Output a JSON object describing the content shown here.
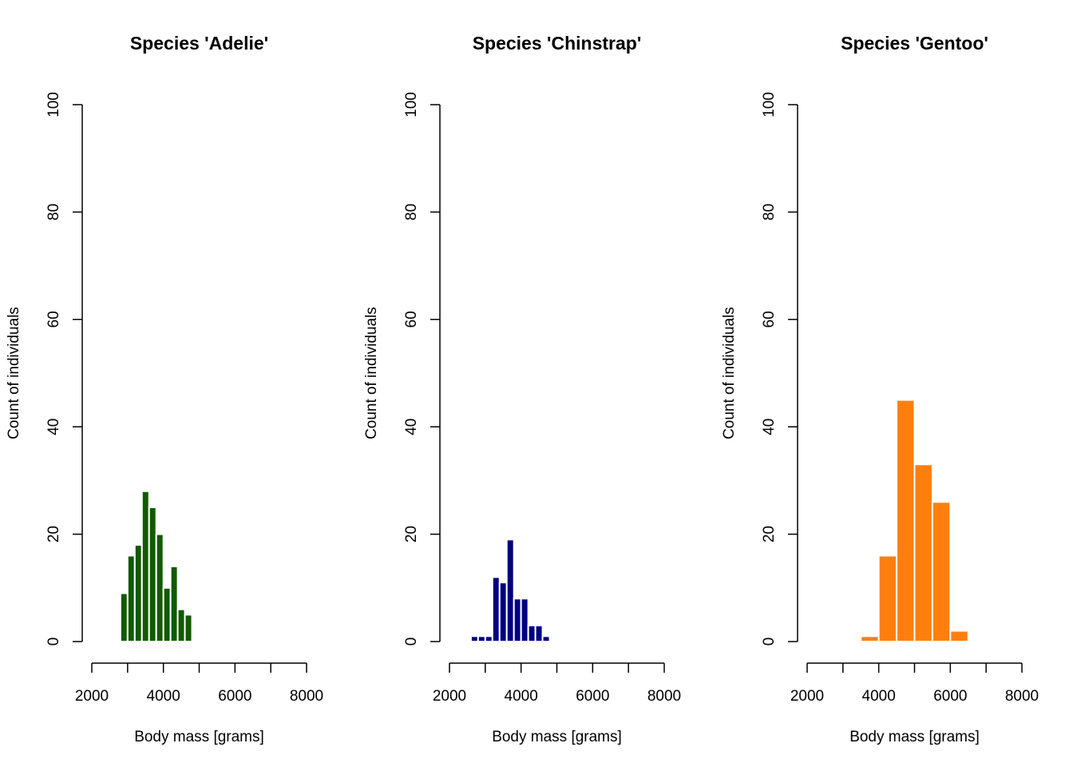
{
  "chart_data": [
    {
      "type": "histogram",
      "title": "Species 'Adelie'",
      "xlabel": "Body mass [grams]",
      "ylabel": "Count of individuals",
      "bins": [
        2800,
        3000,
        3200,
        3400,
        3600,
        3800,
        4000,
        4200,
        4400,
        4600,
        4800
      ],
      "values": [
        9,
        16,
        18,
        28,
        25,
        20,
        10,
        14,
        6,
        5
      ],
      "color": "#115a00",
      "xlim": [
        2000,
        8000
      ],
      "xticks": [
        2000,
        4000,
        6000,
        8000
      ],
      "minor_xticks": [
        3000,
        5000,
        7000
      ],
      "ylim": [
        0,
        100
      ],
      "yticks": [
        0,
        20,
        40,
        60,
        80,
        100
      ]
    },
    {
      "type": "histogram",
      "title": "Species 'Chinstrap'",
      "xlabel": "Body mass [grams]",
      "ylabel": "Count of individuals",
      "bins": [
        2600,
        2800,
        3000,
        3200,
        3400,
        3600,
        3800,
        4000,
        4200,
        4400,
        4600,
        4800
      ],
      "values": [
        1,
        1,
        1,
        12,
        11,
        19,
        8,
        8,
        3,
        3,
        1
      ],
      "color": "#000080",
      "xlim": [
        2000,
        8000
      ],
      "xticks": [
        2000,
        4000,
        6000,
        8000
      ],
      "minor_xticks": [
        3000,
        5000,
        7000
      ],
      "ylim": [
        0,
        100
      ],
      "yticks": [
        0,
        20,
        40,
        60,
        80,
        100
      ]
    },
    {
      "type": "histogram",
      "title": "Species 'Gentoo'",
      "xlabel": "Body mass [grams]",
      "ylabel": "Count of individuals",
      "bins": [
        3500,
        4000,
        4500,
        5000,
        5500,
        6000,
        6500
      ],
      "values": [
        1,
        16,
        45,
        33,
        26,
        2
      ],
      "color": "#ff7f0e",
      "xlim": [
        2000,
        8000
      ],
      "xticks": [
        2000,
        4000,
        6000,
        8000
      ],
      "minor_xticks": [
        3000,
        5000,
        7000
      ],
      "ylim": [
        0,
        100
      ],
      "yticks": [
        0,
        20,
        40,
        60,
        80,
        100
      ]
    }
  ]
}
